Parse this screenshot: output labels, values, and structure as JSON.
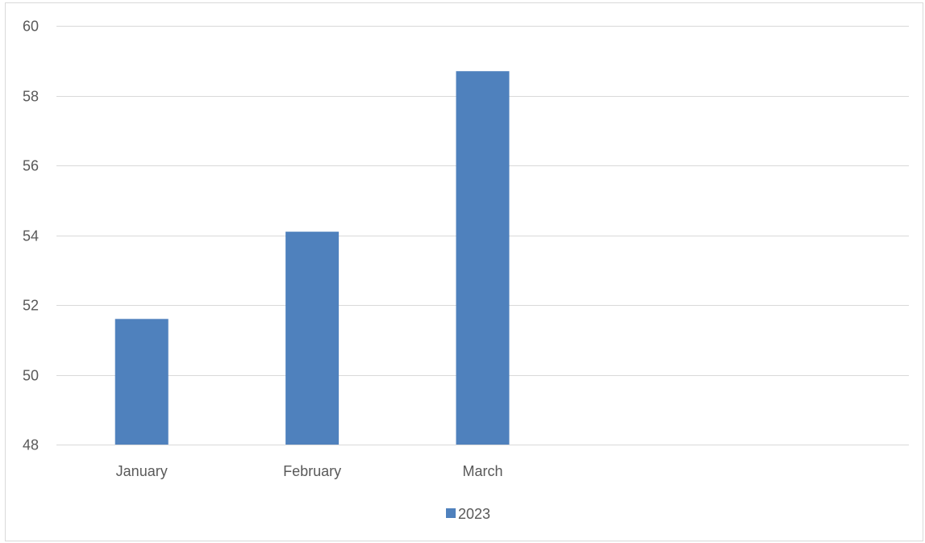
{
  "chart_data": {
    "type": "bar",
    "categories": [
      "January",
      "February",
      "March",
      "",
      ""
    ],
    "series": [
      {
        "name": "2023",
        "values": [
          51.6,
          54.1,
          58.7,
          null,
          null
        ],
        "color": "#4f81bd"
      }
    ],
    "ylim": [
      48,
      60
    ],
    "yticks": [
      48,
      50,
      52,
      54,
      56,
      58,
      60
    ],
    "grid": true,
    "gridline_color": "#d9d9d9",
    "label_color": "#595959",
    "legend_position": "bottom"
  }
}
